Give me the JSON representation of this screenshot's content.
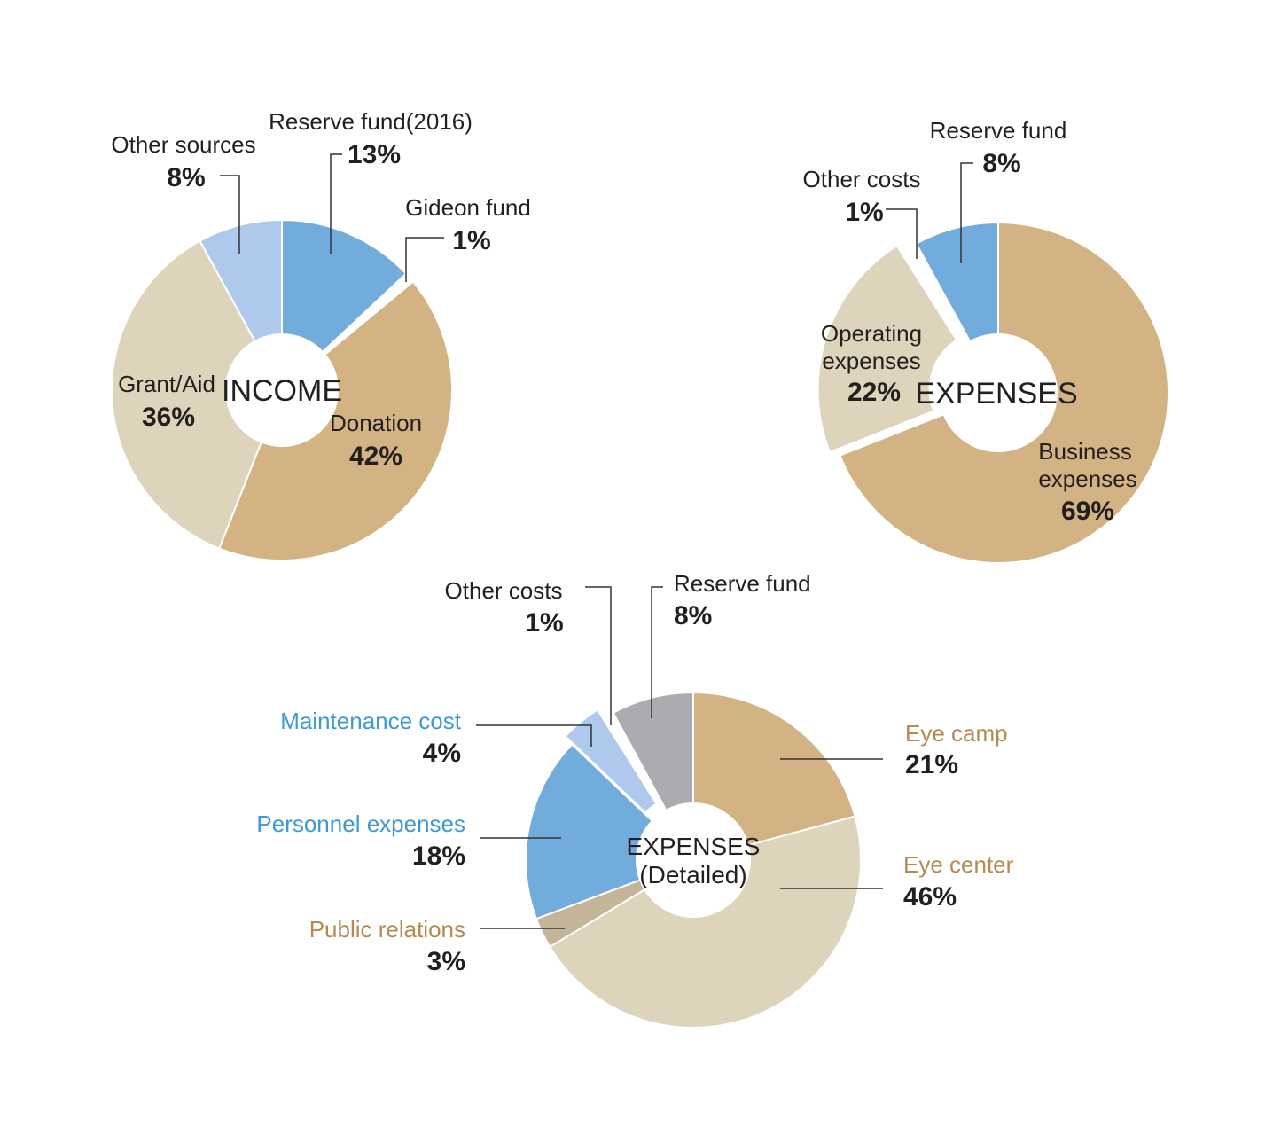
{
  "colors": {
    "tan": "#d3b384",
    "beige": "#ddd4bb",
    "blue": "#72acdc",
    "light_blue": "#aec9ec",
    "gray": "#abacb0",
    "brown_gray": "#c4b498",
    "text_dark": "#231f20",
    "text_blue": "#3d9ad1",
    "text_brown": "#b38a4f",
    "leader": "#333333"
  },
  "chart_data": [
    {
      "type": "pie",
      "style": "donut",
      "center_label": "INCOME",
      "slices": [
        {
          "label": "Reserve fund(2016)",
          "pct_text": "13%",
          "value": 13,
          "color": "blue"
        },
        {
          "label": "Gideon fund",
          "pct_text": "1%",
          "value": 1,
          "color": "white",
          "exploded": true
        },
        {
          "label": "Donation",
          "pct_text": "42%",
          "value": 42,
          "color": "tan"
        },
        {
          "label": "Grant/Aid",
          "pct_text": "36%",
          "value": 36,
          "color": "beige"
        },
        {
          "label": "Other sources",
          "pct_text": "8%",
          "value": 8,
          "color": "light_blue"
        }
      ]
    },
    {
      "type": "pie",
      "style": "donut",
      "center_label": "EXPENSES",
      "slices": [
        {
          "label": "Business expenses",
          "label_lines": [
            "Business",
            "expenses"
          ],
          "pct_text": "69%",
          "value": 69,
          "color": "tan"
        },
        {
          "label": "Operating expenses",
          "label_lines": [
            "Operating",
            "expenses"
          ],
          "pct_text": "22%",
          "value": 22,
          "color": "beige",
          "exploded": true
        },
        {
          "label": "Other costs",
          "pct_text": "1%",
          "value": 1,
          "color": "white"
        },
        {
          "label": "Reserve fund",
          "pct_text": "8%",
          "value": 8,
          "color": "blue"
        }
      ]
    },
    {
      "type": "pie",
      "style": "donut",
      "center_label_lines": [
        "EXPENSES",
        "(Detailed)"
      ],
      "slices": [
        {
          "label": "Eye camp",
          "pct_text": "21%",
          "value": 21,
          "color": "tan",
          "label_color": "text_brown"
        },
        {
          "label": "Eye center",
          "pct_text": "46%",
          "value": 46,
          "color": "beige",
          "label_color": "text_brown"
        },
        {
          "label": "Public relations",
          "pct_text": "3%",
          "value": 3,
          "color": "brown_gray",
          "label_color": "text_brown"
        },
        {
          "label": "Personnel expenses",
          "pct_text": "18%",
          "value": 18,
          "color": "blue",
          "label_color": "text_blue"
        },
        {
          "label": "Maintenance cost",
          "pct_text": "4%",
          "value": 4,
          "color": "light_blue",
          "label_color": "text_blue",
          "exploded": true
        },
        {
          "label": "Other costs",
          "pct_text": "1%",
          "value": 1,
          "color": "white",
          "label_color": "text_dark"
        },
        {
          "label": "Reserve fund",
          "pct_text": "8%",
          "value": 8,
          "color": "gray",
          "label_color": "text_dark"
        }
      ]
    }
  ]
}
